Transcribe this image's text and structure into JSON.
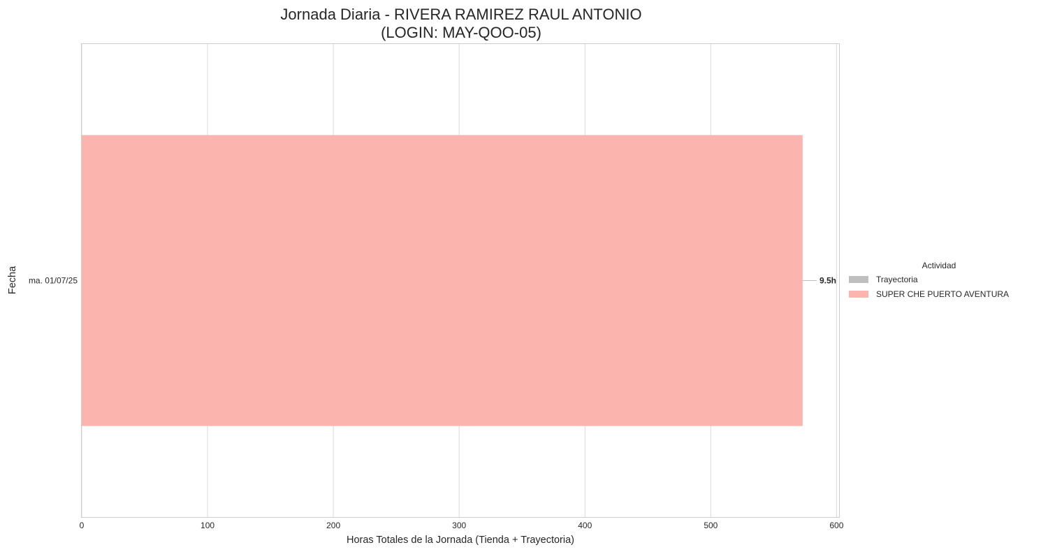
{
  "chart_data": {
    "type": "bar",
    "orientation": "horizontal",
    "stacked": true,
    "title_lines": [
      "Jornada Diaria - RIVERA RAMIREZ RAUL ANTONIO",
      "(LOGIN: MAY-QOO-05)"
    ],
    "xlabel": "Horas Totales de la Jornada (Tienda + Trayectoria)",
    "ylabel": "Fecha",
    "xlim": [
      0,
      602
    ],
    "xticks": [
      "0",
      "100",
      "200",
      "300",
      "400",
      "500",
      "600"
    ],
    "grid": true,
    "categories": [
      "ma. 01/07/25"
    ],
    "series": [
      {
        "name": "Trayectoria",
        "color": "#bfbfbf",
        "values": [
          0
        ]
      },
      {
        "name": "SUPER CHE PUERTO AVENTURA",
        "color": "#fbb4ae",
        "values": [
          573
        ]
      }
    ],
    "data_labels": [
      "9.5h"
    ],
    "legend": {
      "title": "Actividad",
      "placement": "right"
    }
  }
}
